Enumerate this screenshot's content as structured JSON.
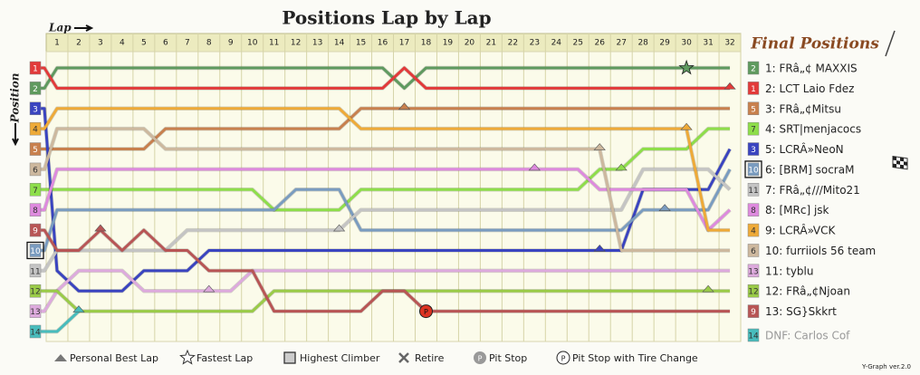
{
  "chart_data": {
    "type": "line",
    "title": "Positions Lap by Lap",
    "x_label": "Lap",
    "y_label": "Position",
    "legend_title": "Final Positions",
    "categories": [
      null,
      "1",
      "2",
      "3",
      "4",
      "5",
      "6",
      "7",
      "8",
      "9",
      "10",
      "11",
      "12",
      "13",
      "14",
      "15",
      "16",
      "17",
      "18",
      "19",
      "20",
      "21",
      "22",
      "23",
      "24",
      "25",
      "26",
      "27",
      "28",
      "29",
      "30",
      "31",
      "32"
    ],
    "ylim": [
      1,
      14
    ],
    "series": [
      {
        "name": "1: FRâ„¢ MAXXIS",
        "color": "#5f9a5f",
        "values": [
          2,
          1,
          1,
          1,
          1,
          1,
          1,
          1,
          1,
          1,
          1,
          1,
          1,
          1,
          1,
          1,
          1,
          2,
          1,
          1,
          1,
          1,
          1,
          1,
          1,
          1,
          1,
          1,
          1,
          1,
          1,
          1,
          1
        ],
        "fastest_lap": 30
      },
      {
        "name": "2: LCT Laio Fdez",
        "color": "#e23a3a",
        "values": [
          1,
          2,
          2,
          2,
          2,
          2,
          2,
          2,
          2,
          2,
          2,
          2,
          2,
          2,
          2,
          2,
          2,
          1,
          2,
          2,
          2,
          2,
          2,
          2,
          2,
          2,
          2,
          2,
          2,
          2,
          2,
          2,
          2
        ],
        "best_lap": 32
      },
      {
        "name": "3: FRâ„¢Mitsu",
        "color": "#c8804e",
        "values": [
          5,
          5,
          5,
          5,
          5,
          5,
          4,
          4,
          4,
          4,
          4,
          4,
          4,
          4,
          4,
          3,
          3,
          3,
          3,
          3,
          3,
          3,
          3,
          3,
          3,
          3,
          3,
          3,
          3,
          3,
          3,
          3,
          3
        ],
        "best_lap": 17
      },
      {
        "name": "4: SRT|menjacocs",
        "color": "#8ede4a",
        "values": [
          7,
          7,
          7,
          7,
          7,
          7,
          7,
          7,
          7,
          7,
          7,
          8,
          8,
          8,
          8,
          7,
          7,
          7,
          7,
          7,
          7,
          7,
          7,
          7,
          7,
          7,
          6,
          6,
          5,
          5,
          5,
          4,
          4
        ],
        "best_lap": 27
      },
      {
        "name": "5: LCRÂ»NeoN",
        "color": "#3a44c0",
        "values": [
          3,
          11,
          12,
          12,
          12,
          11,
          11,
          11,
          10,
          10,
          10,
          10,
          10,
          10,
          10,
          10,
          10,
          10,
          10,
          10,
          10,
          10,
          10,
          10,
          10,
          10,
          10,
          10,
          7,
          7,
          7,
          7,
          5
        ],
        "best_lap": 26
      },
      {
        "name": "6: [BRM] socraM",
        "color": "#7a9cc0",
        "values": [
          10,
          8,
          8,
          8,
          8,
          8,
          8,
          8,
          8,
          8,
          8,
          8,
          7,
          7,
          7,
          9,
          9,
          9,
          9,
          9,
          9,
          9,
          9,
          9,
          9,
          9,
          9,
          9,
          8,
          8,
          8,
          8,
          6
        ],
        "best_lap": 29,
        "highest_climber": true
      },
      {
        "name": "7: FRâ„¢///Mito21",
        "color": "#c4c4c4",
        "values": [
          11,
          10,
          10,
          10,
          10,
          10,
          10,
          9,
          9,
          9,
          9,
          9,
          9,
          9,
          9,
          8,
          8,
          8,
          8,
          8,
          8,
          8,
          8,
          8,
          8,
          8,
          8,
          8,
          6,
          6,
          6,
          6,
          7
        ],
        "best_lap": 14
      },
      {
        "name": "8: [MRc] jsk",
        "color": "#de8ade",
        "values": [
          8,
          6,
          6,
          6,
          6,
          6,
          6,
          6,
          6,
          6,
          6,
          6,
          6,
          6,
          6,
          6,
          6,
          6,
          6,
          6,
          6,
          6,
          6,
          6,
          6,
          6,
          7,
          7,
          7,
          7,
          7,
          9,
          8
        ],
        "best_lap": 23
      },
      {
        "name": "9: LCRÂ»VCK",
        "color": "#eeaa38",
        "values": [
          4,
          3,
          3,
          3,
          3,
          3,
          3,
          3,
          3,
          3,
          3,
          3,
          3,
          3,
          3,
          4,
          4,
          4,
          4,
          4,
          4,
          4,
          4,
          4,
          4,
          4,
          4,
          4,
          4,
          4,
          4,
          9,
          9
        ],
        "best_lap": 30
      },
      {
        "name": "10: furriiols 56 team",
        "color": "#cdb89e",
        "values": [
          6,
          4,
          4,
          4,
          4,
          4,
          5,
          5,
          5,
          5,
          5,
          5,
          5,
          5,
          5,
          5,
          5,
          5,
          5,
          5,
          5,
          5,
          5,
          5,
          5,
          5,
          5,
          10,
          10,
          10,
          10,
          10,
          10
        ],
        "best_lap": 26
      },
      {
        "name": "11: tyblu",
        "color": "#ddaadd",
        "values": [
          13,
          12,
          11,
          11,
          11,
          12,
          12,
          12,
          12,
          12,
          11,
          11,
          11,
          11,
          11,
          11,
          11,
          11,
          11,
          11,
          11,
          11,
          11,
          11,
          11,
          11,
          11,
          11,
          11,
          11,
          11,
          11,
          11
        ],
        "best_lap": 8
      },
      {
        "name": "12: FRâ„¢Njoan",
        "color": "#9acb48",
        "values": [
          12,
          12,
          13,
          13,
          13,
          13,
          13,
          13,
          13,
          13,
          13,
          12,
          12,
          12,
          12,
          12,
          12,
          12,
          12,
          12,
          12,
          12,
          12,
          12,
          12,
          12,
          12,
          12,
          12,
          12,
          12,
          12,
          12
        ],
        "best_lap": 31
      },
      {
        "name": "13: SG}Skkrt",
        "color": "#b85555",
        "values": [
          9,
          10,
          10,
          9,
          10,
          9,
          10,
          10,
          11,
          11,
          11,
          13,
          13,
          13,
          13,
          13,
          12,
          12,
          13,
          13,
          13,
          13,
          13,
          13,
          13,
          13,
          13,
          13,
          13,
          13,
          13,
          13,
          13
        ],
        "best_lap": 3,
        "pit_stop_tire": 18
      },
      {
        "name": "DNF: Carlos Cof",
        "color": "#48bcbc",
        "values": [
          14,
          14,
          13,
          null,
          null,
          null,
          null,
          null,
          null,
          null,
          null,
          null,
          null,
          null,
          null,
          null,
          null,
          null,
          null,
          null,
          null,
          null,
          null,
          null,
          null,
          null,
          null,
          null,
          null,
          null,
          null,
          null,
          null
        ],
        "best_lap": 2,
        "dnf": true
      }
    ],
    "legend_items": [
      "Personal Best Lap",
      "Fastest Lap",
      "Highest Climber",
      "Retire",
      "Pit Stop",
      "Pit Stop with Tire Change"
    ],
    "pit_symbol": "P",
    "footnote": "Y-Graph ver.2.0"
  }
}
